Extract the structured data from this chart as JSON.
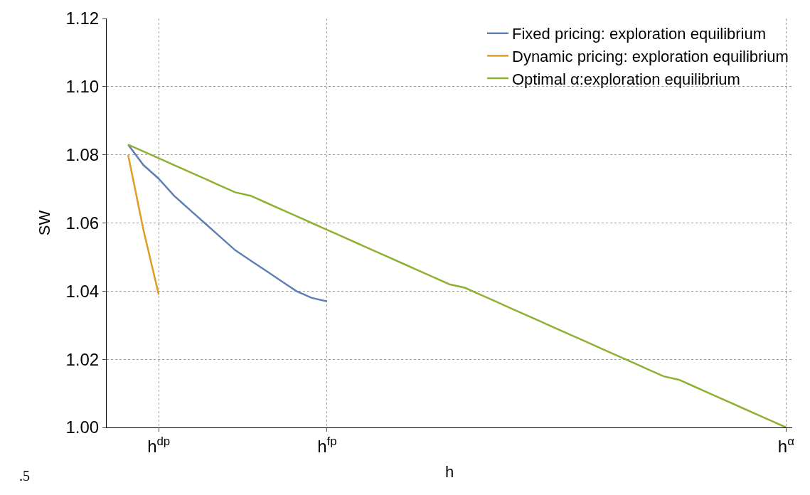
{
  "chart_data": {
    "type": "line",
    "xlabel": "h",
    "ylabel": "SW",
    "categories": [
      null,
      null,
      "h$^{dp}$",
      null,
      null,
      null,
      null,
      null,
      null,
      null,
      null,
      null,
      null,
      "h$^{fp}$",
      null,
      null,
      null,
      null,
      null,
      null,
      null,
      null,
      null,
      null,
      null,
      null,
      null,
      null,
      null,
      null,
      null,
      null,
      null,
      null,
      null,
      null,
      null,
      null,
      null,
      null,
      null,
      null,
      null,
      "h$^{α}$"
    ],
    "ylim": [
      1.0,
      1.12
    ],
    "yticks": [
      {
        "value": 1.0,
        "label": "1.00"
      },
      {
        "value": 1.02,
        "label": "1.02"
      },
      {
        "value": 1.04,
        "label": "1.04"
      },
      {
        "value": 1.06,
        "label": "1.06"
      },
      {
        "value": 1.08,
        "label": "1.08"
      },
      {
        "value": 1.1,
        "label": "1.10"
      },
      {
        "value": 1.12,
        "label": "1.12"
      }
    ],
    "series": [
      {
        "name": "Fixed pricing: exploration equilibrium",
        "color": "#5e81b5",
        "values": [
          1.083,
          1.077,
          1.073,
          1.068,
          1.064,
          1.06,
          1.056,
          1.052,
          1.049,
          1.046,
          1.043,
          1.04,
          1.038,
          1.037,
          null,
          null,
          null,
          null,
          null,
          null,
          null,
          null,
          null,
          null,
          null,
          null,
          null,
          null,
          null,
          null,
          null,
          null,
          null,
          null,
          null,
          null,
          null,
          null,
          null,
          null,
          null,
          null,
          null,
          null
        ]
      },
      {
        "name": "Dynamic pricing: exploration equilibrium",
        "color": "#e19c24",
        "values": [
          1.08,
          1.058,
          1.039,
          null,
          null,
          null,
          null,
          null,
          null,
          null,
          null,
          null,
          null,
          null,
          null,
          null,
          null,
          null,
          null,
          null,
          null,
          null,
          null,
          null,
          null,
          null,
          null,
          null,
          null,
          null,
          null,
          null,
          null,
          null,
          null,
          null,
          null,
          null,
          null,
          null,
          null,
          null,
          null,
          null
        ]
      },
      {
        "name": "Optimal α:exploration equilibrium",
        "color": "#8fb032",
        "values": [
          1.083,
          1.081,
          1.079,
          1.077,
          1.075,
          1.073,
          1.071,
          1.069,
          1.068,
          1.066,
          1.064,
          1.062,
          1.06,
          1.058,
          1.056,
          1.054,
          1.052,
          1.05,
          1.048,
          1.046,
          1.044,
          1.042,
          1.041,
          1.039,
          1.037,
          1.035,
          1.033,
          1.031,
          1.029,
          1.027,
          1.025,
          1.023,
          1.021,
          1.019,
          1.017,
          1.015,
          1.014,
          1.012,
          1.01,
          1.008,
          1.006,
          1.004,
          1.002,
          1.0
        ]
      }
    ],
    "grid": true,
    "legend": "top right",
    "line_style": "solid",
    "marker": "none",
    "annotations": [
      ".5"
    ]
  }
}
